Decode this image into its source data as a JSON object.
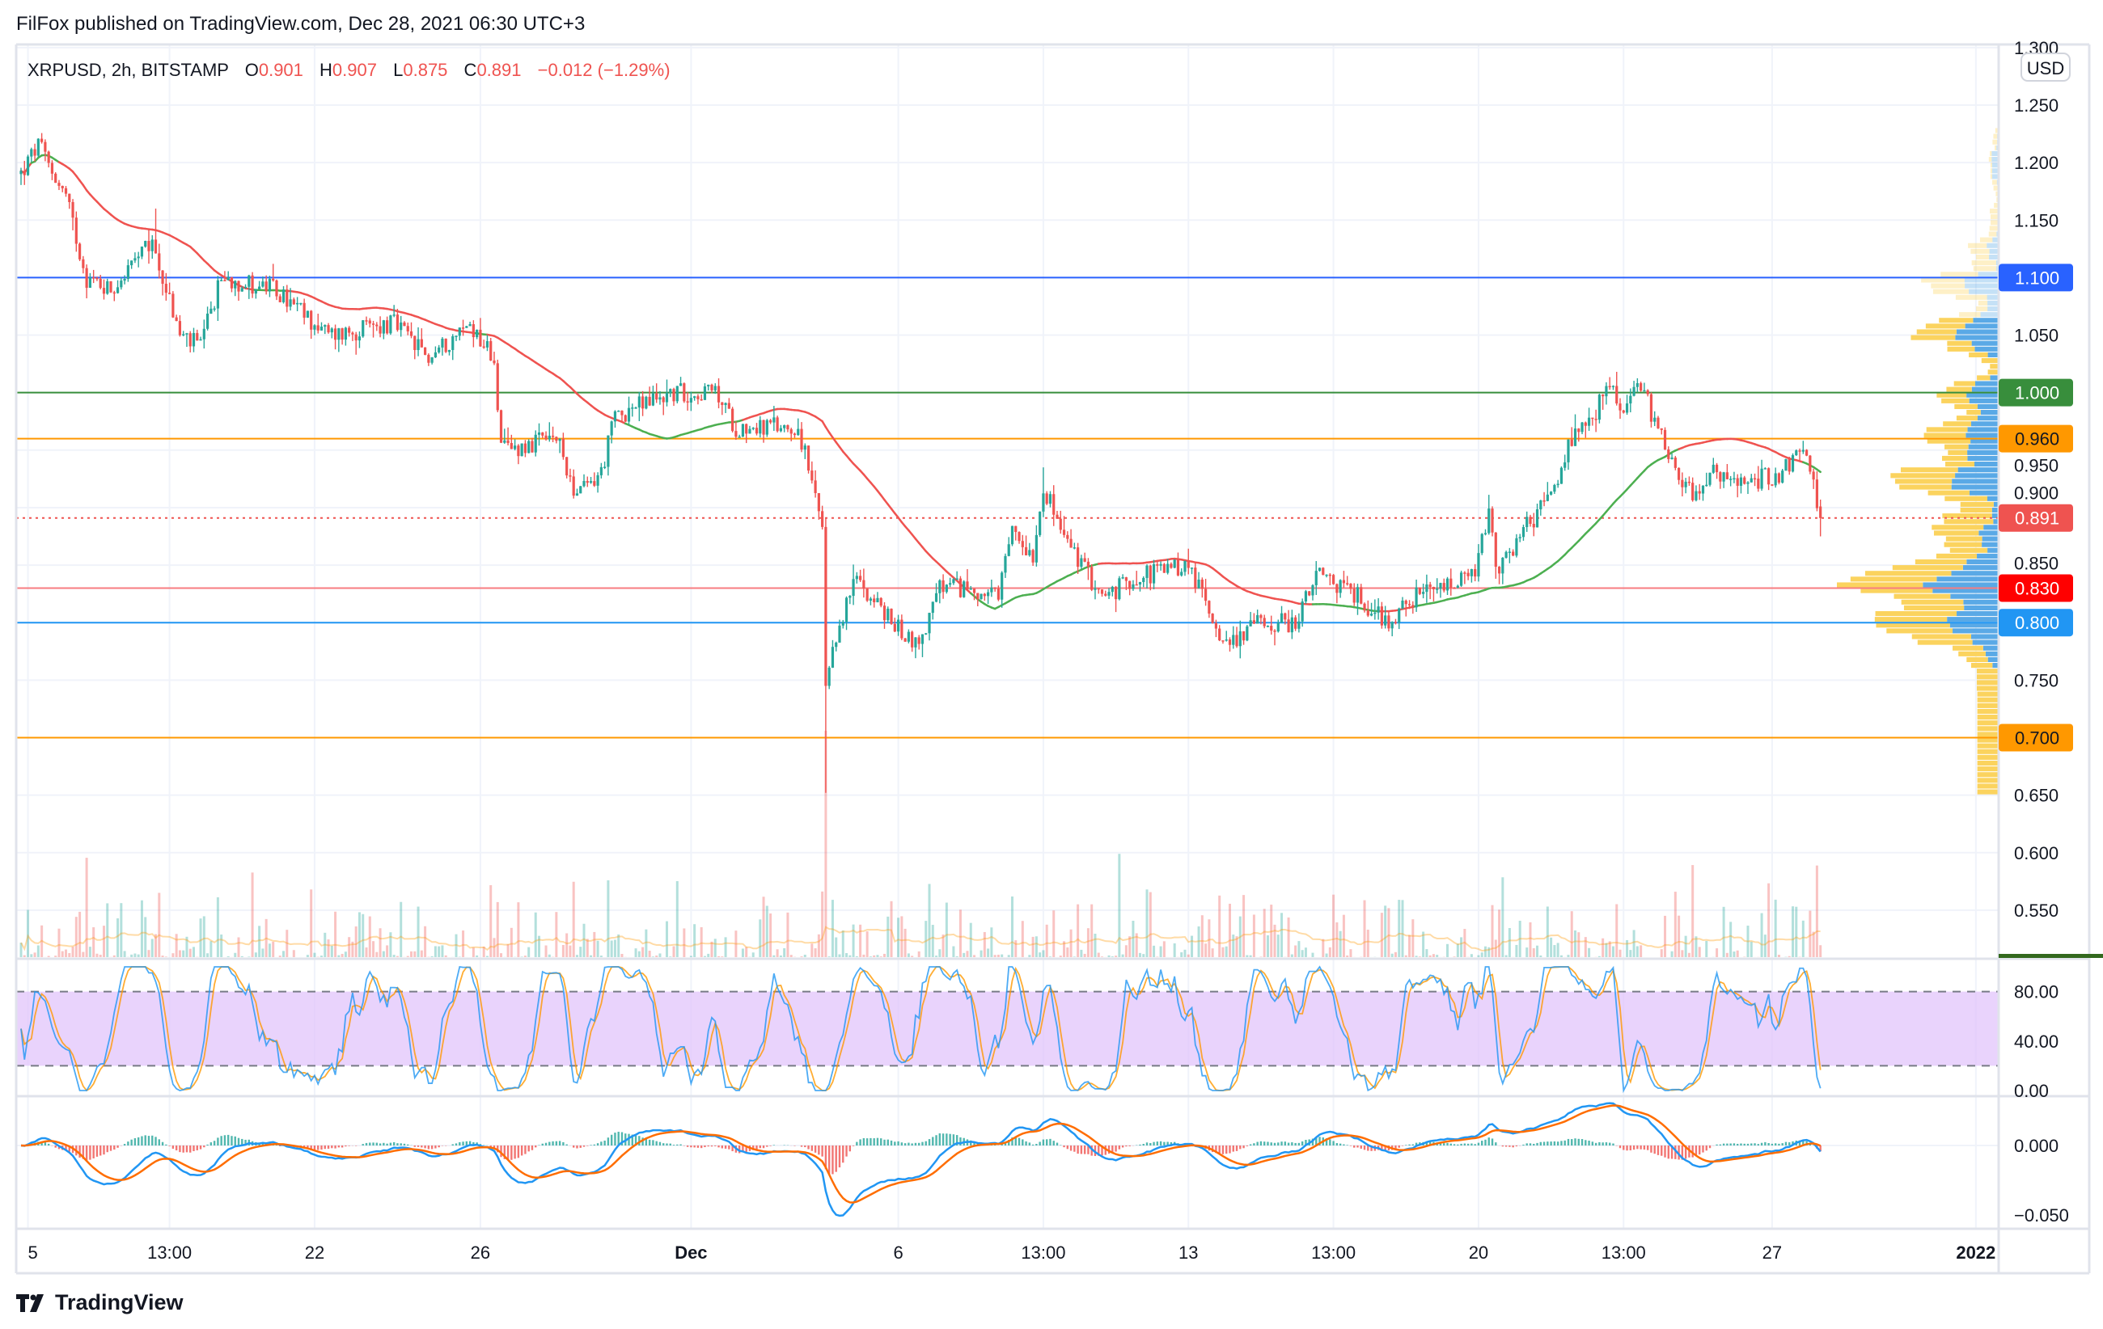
{
  "header": {
    "published": "FilFox published on TradingView.com, Dec 28, 2021 06:30 UTC+3"
  },
  "legend": {
    "symbol": "XRPUSD, 2h, BITSTAMP",
    "o_label": "O",
    "o": "0.901",
    "h_label": "H",
    "h": "0.907",
    "l_label": "L",
    "l": "0.875",
    "c_label": "C",
    "c": "0.891",
    "change": "−0.012 (−1.29%)"
  },
  "currency": "USD",
  "footer": {
    "brand": "TradingView"
  },
  "colors": {
    "up": "#26a69a",
    "down": "#ef5350",
    "ma_down": "#ef5350",
    "ma_up": "#4caf50",
    "stoch_k": "#2196f3",
    "stoch_d": "#ff9800",
    "macd": "#2196f3",
    "signal": "#ff6d00",
    "vp_up": "#5aa9e6",
    "vp_down": "#fbd35e"
  },
  "chart_data": {
    "type": "candlestick",
    "symbol": "XRPUSD",
    "interval": "2h",
    "ylim": [
      0.51,
      1.3
    ],
    "price_ticks": [
      "1.300",
      "1.250",
      "1.200",
      "1.150",
      "1.100",
      "1.050",
      "1.000",
      "0.950",
      "0.900",
      "0.850",
      "0.800",
      "0.750",
      "0.700",
      "0.650",
      "0.600",
      "0.550"
    ],
    "time_ticks": [
      {
        "label": "5",
        "index": 2,
        "major": false
      },
      {
        "label": "13:00",
        "index": 43,
        "major": false
      },
      {
        "label": "22",
        "index": 85,
        "major": false
      },
      {
        "label": "26",
        "index": 133,
        "major": false
      },
      {
        "label": "Dec",
        "index": 194,
        "major": true
      },
      {
        "label": "6",
        "index": 254,
        "major": false
      },
      {
        "label": "13:00",
        "index": 296,
        "major": false
      },
      {
        "label": "13",
        "index": 338,
        "major": false
      },
      {
        "label": "13:00",
        "index": 380,
        "major": false
      },
      {
        "label": "20",
        "index": 422,
        "major": false
      },
      {
        "label": "13:00",
        "index": 464,
        "major": false
      },
      {
        "label": "27",
        "index": 507,
        "major": false
      },
      {
        "label": "2022",
        "index": 566,
        "major": true
      }
    ],
    "price_path": [
      [
        0,
        1.19
      ],
      [
        5,
        1.215
      ],
      [
        13,
        1.17
      ],
      [
        19,
        1.1
      ],
      [
        26,
        1.09
      ],
      [
        38,
        1.13
      ],
      [
        46,
        1.05
      ],
      [
        52,
        1.04
      ],
      [
        58,
        1.1
      ],
      [
        73,
        1.09
      ],
      [
        89,
        1.05
      ],
      [
        108,
        1.06
      ],
      [
        118,
        1.03
      ],
      [
        130,
        1.06
      ],
      [
        137,
        1.03
      ],
      [
        139,
        0.95
      ],
      [
        155,
        0.96
      ],
      [
        161,
        0.91
      ],
      [
        168,
        0.93
      ],
      [
        172,
        0.98
      ],
      [
        188,
        1.0
      ],
      [
        201,
        1.0
      ],
      [
        207,
        0.97
      ],
      [
        225,
        0.97
      ],
      [
        229,
        0.92
      ],
      [
        232,
        0.88
      ],
      [
        233,
        0.74
      ],
      [
        237,
        0.8
      ],
      [
        242,
        0.84
      ],
      [
        252,
        0.8
      ],
      [
        260,
        0.78
      ],
      [
        266,
        0.83
      ],
      [
        275,
        0.83
      ],
      [
        283,
        0.82
      ],
      [
        287,
        0.88
      ],
      [
        293,
        0.86
      ],
      [
        296,
        0.92
      ],
      [
        301,
        0.88
      ],
      [
        307,
        0.85
      ],
      [
        314,
        0.82
      ],
      [
        322,
        0.84
      ],
      [
        338,
        0.85
      ],
      [
        349,
        0.78
      ],
      [
        357,
        0.8
      ],
      [
        369,
        0.8
      ],
      [
        375,
        0.84
      ],
      [
        384,
        0.83
      ],
      [
        396,
        0.8
      ],
      [
        402,
        0.82
      ],
      [
        412,
        0.83
      ],
      [
        421,
        0.84
      ],
      [
        425,
        0.9
      ],
      [
        427,
        0.84
      ],
      [
        435,
        0.88
      ],
      [
        443,
        0.91
      ],
      [
        449,
        0.96
      ],
      [
        454,
        0.97
      ],
      [
        460,
        1.01
      ],
      [
        464,
        0.98
      ],
      [
        468,
        1.01
      ],
      [
        474,
        0.97
      ],
      [
        480,
        0.93
      ],
      [
        484,
        0.91
      ],
      [
        489,
        0.93
      ],
      [
        497,
        0.92
      ],
      [
        509,
        0.93
      ],
      [
        516,
        0.95
      ],
      [
        518,
        0.93
      ],
      [
        521,
        0.891
      ]
    ],
    "wick_extremes": [
      [
        233,
        0.652
      ],
      [
        39,
        1.16
      ],
      [
        296,
        0.935
      ]
    ],
    "last_candle": {
      "open": 0.901,
      "high": 0.907,
      "low": 0.875,
      "close": 0.891
    },
    "levels": [
      {
        "price": 1.1,
        "label": "1.100",
        "color": "#2962ff",
        "text": "#ffffff",
        "style": "solid"
      },
      {
        "price": 1.0,
        "label": "1.000",
        "color": "#388e3c",
        "text": "#ffffff",
        "style": "solid"
      },
      {
        "price": 0.96,
        "label": "0.960",
        "color": "#ff9800",
        "text": "#131722",
        "style": "solid"
      },
      {
        "price": 0.891,
        "label": "0.891",
        "color": "#ef5350",
        "text": "#ffffff",
        "style": "dotted"
      },
      {
        "price": 0.83,
        "label": "0.830",
        "color": "#ff0000",
        "text": "#ffffff",
        "style": "solid",
        "line": "#f77c80"
      },
      {
        "price": 0.8,
        "label": "0.800",
        "color": "#2196f3",
        "text": "#ffffff",
        "style": "solid"
      },
      {
        "price": 0.7,
        "label": "0.700",
        "color": "#ff9800",
        "text": "#131722",
        "style": "solid"
      }
    ],
    "stoch_rsi": {
      "ticks": [
        "80.00",
        "40.00",
        "0.00"
      ],
      "ylim": [
        0,
        100
      ],
      "band": [
        20,
        80
      ]
    },
    "macd": {
      "ticks": [
        "0.000",
        "−0.050"
      ],
      "ylim": [
        -0.06,
        0.03
      ]
    }
  }
}
